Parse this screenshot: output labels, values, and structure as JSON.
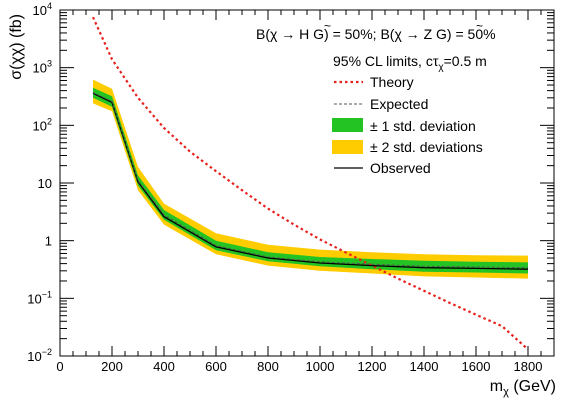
{
  "chart_data": {
    "type": "line",
    "xlabel_main": "m",
    "xlabel_sub": "χ",
    "xlabel_unit": " (GeV)",
    "ylabel": "σ(χχ) (fb)",
    "xlim": [
      0,
      1900
    ],
    "ylim": [
      0.01,
      10000
    ],
    "y_log": true,
    "grid": false,
    "x_ticks": [
      0,
      200,
      400,
      600,
      800,
      1000,
      1200,
      1400,
      1600,
      1800
    ],
    "x_tick_labels": [
      "0",
      "200",
      "400",
      "600",
      "800",
      "1000",
      "1200",
      "1400",
      "1600",
      "1800"
    ],
    "y_ticks": [
      0.01,
      0.1,
      1,
      10,
      100,
      1000,
      10000
    ],
    "y_tick_labels": [
      {
        "base": "10",
        "exp": "−2"
      },
      {
        "base": "10",
        "exp": "−1"
      },
      {
        "base": "1",
        "exp": ""
      },
      {
        "base": "10",
        "exp": ""
      },
      {
        "base": "10",
        "exp": "2"
      },
      {
        "base": "10",
        "exp": "3"
      },
      {
        "base": "10",
        "exp": "4"
      }
    ],
    "annotations": {
      "line1_a": "B(χ → H ",
      "line1_g1": "G",
      "line1_b": ") = 50%; B(χ → Z ",
      "line1_g2": "G",
      "line1_c": ") = 50%",
      "line2_a": "95% CL limits, cτ",
      "line2_sub": "χ",
      "line2_b": "=0.5 m",
      "tilde": "~"
    },
    "legend_position": "top-right",
    "legend": [
      {
        "label": "Theory",
        "style": "dotted-line",
        "color": "#e8201c"
      },
      {
        "label": "Expected",
        "style": "dashed-line",
        "color": "#000000"
      },
      {
        "label": "± 1 std. deviation",
        "style": "fill",
        "color": "#22c322"
      },
      {
        "label": "± 2 std. deviations",
        "style": "fill",
        "color": "#ffcc00"
      },
      {
        "label": "Observed",
        "style": "solid-line",
        "color": "#000000"
      }
    ],
    "x": [
      127,
      200,
      300,
      400,
      600,
      800,
      1000,
      1200,
      1400,
      1600,
      1800
    ],
    "series": [
      {
        "name": "Theory",
        "x": [
          127,
          200,
          300,
          400,
          500,
          600,
          700,
          800,
          900,
          1000,
          1100,
          1200,
          1300,
          1400,
          1500,
          1600,
          1700,
          1800
        ],
        "values": [
          7500,
          1400,
          300,
          90,
          35,
          16,
          7.5,
          3.6,
          1.9,
          1.05,
          0.62,
          0.37,
          0.22,
          0.135,
          0.083,
          0.052,
          0.033,
          0.013
        ]
      },
      {
        "name": "Expected",
        "values": [
          370,
          260,
          11,
          2.8,
          0.82,
          0.52,
          0.43,
          0.39,
          0.36,
          0.35,
          0.34
        ]
      },
      {
        "name": "Observed",
        "values": [
          360,
          250,
          10.5,
          2.6,
          0.78,
          0.5,
          0.41,
          0.37,
          0.34,
          0.33,
          0.32
        ]
      },
      {
        "name": "± 1 std. deviation",
        "low": [
          300,
          210,
          9,
          2.3,
          0.68,
          0.44,
          0.36,
          0.32,
          0.29,
          0.28,
          0.27
        ],
        "high": [
          450,
          320,
          13.5,
          3.4,
          1.0,
          0.63,
          0.52,
          0.48,
          0.45,
          0.43,
          0.42
        ]
      },
      {
        "name": "± 2 std. deviations",
        "low": [
          240,
          175,
          7.5,
          1.9,
          0.58,
          0.37,
          0.3,
          0.27,
          0.24,
          0.23,
          0.22
        ],
        "high": [
          620,
          430,
          19,
          4.4,
          1.35,
          0.85,
          0.7,
          0.63,
          0.58,
          0.56,
          0.55
        ]
      }
    ]
  }
}
